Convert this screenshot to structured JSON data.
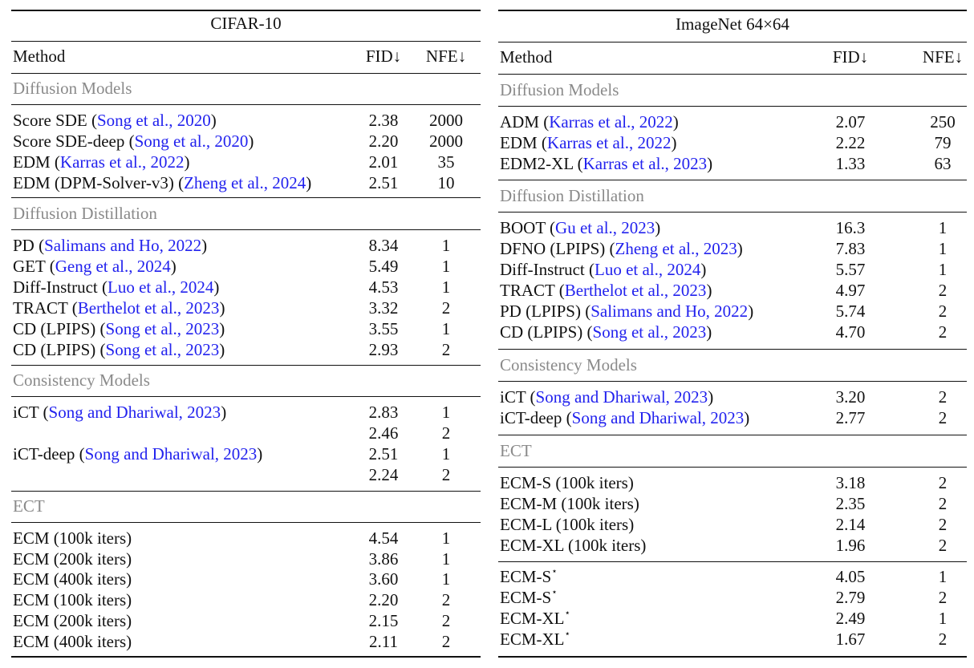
{
  "left": {
    "title": "CIFAR-10",
    "headers": {
      "method": "Method",
      "fid": "FID↓",
      "nfe": "NFE↓"
    },
    "groups": {
      "diffusion": "Diffusion Models",
      "distill": "Diffusion Distillation",
      "consistency": "Consistency Models",
      "ect": "ECT"
    },
    "rows": [
      {
        "method": "Score SDE",
        "cite": "Song et al., 2020",
        "fid": "2.38",
        "nfe": "2000"
      },
      {
        "method": "Score SDE-deep",
        "cite": "Song et al., 2020",
        "fid": "2.20",
        "nfe": "2000"
      },
      {
        "method": "EDM",
        "cite": "Karras et al., 2022",
        "fid": "2.01",
        "nfe": "35"
      },
      {
        "method": "EDM (DPM-Solver-v3)",
        "cite": "Zheng et al., 2024",
        "fid": "2.51",
        "nfe": "10"
      },
      {
        "method": "PD",
        "cite": "Salimans and Ho, 2022",
        "fid": "8.34",
        "nfe": "1"
      },
      {
        "method": "GET",
        "cite": "Geng et al., 2024",
        "fid": "5.49",
        "nfe": "1"
      },
      {
        "method": "Diff-Instruct",
        "cite": "Luo et al., 2024",
        "fid": "4.53",
        "nfe": "1"
      },
      {
        "method": "TRACT",
        "cite": "Berthelot et al., 2023",
        "fid": "3.32",
        "nfe": "2"
      },
      {
        "method": "CD (LPIPS)",
        "cite": "Song et al., 2023",
        "fid": "3.55",
        "nfe": "1"
      },
      {
        "method": "CD (LPIPS)",
        "cite": "Song et al., 2023",
        "fid": "2.93",
        "nfe": "2"
      },
      {
        "method": "iCT",
        "cite": "Song and Dhariwal, 2023",
        "fid": "2.83",
        "nfe": "1"
      },
      {
        "method": "",
        "cite": "",
        "fid": "2.46",
        "nfe": "2"
      },
      {
        "method": "iCT-deep",
        "cite": "Song and Dhariwal, 2023",
        "fid": "2.51",
        "nfe": "1"
      },
      {
        "method": "",
        "cite": "",
        "fid": "2.24",
        "nfe": "2"
      },
      {
        "method": "ECM (100k iters)",
        "fid": "4.54",
        "nfe": "1"
      },
      {
        "method": "ECM (200k iters)",
        "fid": "3.86",
        "nfe": "1"
      },
      {
        "method": "ECM (400k iters)",
        "fid": "3.60",
        "nfe": "1"
      },
      {
        "method": "ECM (100k iters)",
        "fid": "2.20",
        "nfe": "2"
      },
      {
        "method": "ECM (200k iters)",
        "fid": "2.15",
        "nfe": "2"
      },
      {
        "method": "ECM (400k iters)",
        "fid": "2.11",
        "nfe": "2"
      }
    ]
  },
  "right": {
    "title": "ImageNet 64×64",
    "headers": {
      "method": "Method",
      "fid": "FID↓",
      "nfe": "NFE↓"
    },
    "groups": {
      "diffusion": "Diffusion Models",
      "distill": "Diffusion Distillation",
      "consistency": "Consistency Models",
      "ect": "ECT"
    },
    "star": "⋆",
    "rows": [
      {
        "method": "ADM",
        "cite": "Karras et al., 2022",
        "fid": "2.07",
        "nfe": "250"
      },
      {
        "method": "EDM",
        "cite": "Karras et al., 2022",
        "fid": "2.22",
        "nfe": "79"
      },
      {
        "method": "EDM2-XL",
        "cite": "Karras et al., 2023",
        "fid": "1.33",
        "nfe": "63"
      },
      {
        "method": "BOOT",
        "cite": "Gu et al., 2023",
        "fid": "16.3",
        "nfe": "1"
      },
      {
        "method": "DFNO (LPIPS)",
        "cite": "Zheng et al., 2023",
        "fid": "7.83",
        "nfe": "1"
      },
      {
        "method": "Diff-Instruct",
        "cite": "Luo et al., 2024",
        "fid": "5.57",
        "nfe": "1"
      },
      {
        "method": "TRACT",
        "cite": "Berthelot et al., 2023",
        "fid": "4.97",
        "nfe": "2"
      },
      {
        "method": "PD (LPIPS)",
        "cite": "Salimans and Ho, 2022",
        "fid": "5.74",
        "nfe": "2"
      },
      {
        "method": "CD (LPIPS)",
        "cite": "Song et al., 2023",
        "fid": "4.70",
        "nfe": "2"
      },
      {
        "method": "iCT",
        "cite": "Song and Dhariwal, 2023",
        "fid": "3.20",
        "nfe": "2"
      },
      {
        "method": "iCT-deep",
        "cite": "Song and Dhariwal, 2023",
        "fid": "2.77",
        "nfe": "2"
      },
      {
        "method": "ECM-S (100k iters)",
        "fid": "3.18",
        "nfe": "2"
      },
      {
        "method": "ECM-M (100k iters)",
        "fid": "2.35",
        "nfe": "2"
      },
      {
        "method": "ECM-L (100k iters)",
        "fid": "2.14",
        "nfe": "2"
      },
      {
        "method": "ECM-XL (100k iters)",
        "fid": "1.96",
        "nfe": "2"
      },
      {
        "method": "ECM-S",
        "fid": "4.05",
        "nfe": "1"
      },
      {
        "method": "ECM-S",
        "fid": "2.79",
        "nfe": "2"
      },
      {
        "method": "ECM-XL",
        "fid": "2.49",
        "nfe": "1"
      },
      {
        "method": "ECM-XL",
        "fid": "1.67",
        "nfe": "2"
      }
    ]
  }
}
